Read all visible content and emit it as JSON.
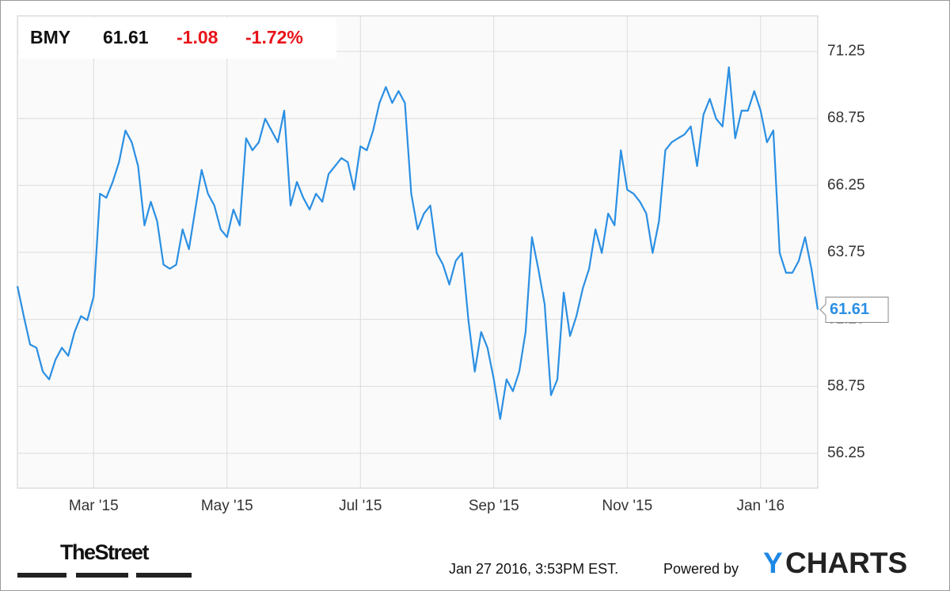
{
  "chart_data": {
    "type": "line",
    "header": {
      "change": "-1.08",
      "change_pct": "-1.72%"
    },
    "categories": [
      null,
      null,
      null,
      null,
      null,
      null,
      null,
      null,
      null,
      null,
      null,
      null,
      "Mar '15",
      null,
      null,
      null,
      null,
      null,
      null,
      null,
      null,
      null,
      null,
      null,
      null,
      null,
      null,
      null,
      null,
      null,
      null,
      null,
      null,
      "May '15",
      null,
      null,
      null,
      null,
      null,
      null,
      null,
      null,
      null,
      null,
      null,
      null,
      null,
      null,
      null,
      null,
      null,
      null,
      null,
      null,
      "Jul '15",
      null,
      null,
      null,
      null,
      null,
      null,
      null,
      null,
      null,
      null,
      null,
      null,
      null,
      null,
      null,
      null,
      null,
      null,
      null,
      null,
      "Sep '15",
      null,
      null,
      null,
      null,
      null,
      null,
      null,
      null,
      null,
      null,
      null,
      null,
      null,
      null,
      null,
      null,
      null,
      null,
      null,
      null,
      "Nov '15",
      null,
      null,
      null,
      null,
      null,
      null,
      null,
      null,
      null,
      null,
      null,
      null,
      null,
      null,
      null,
      null,
      null,
      null,
      null,
      null,
      "Jan '16",
      null,
      null,
      null,
      null,
      null,
      null,
      null,
      null,
      null
    ],
    "series": [
      {
        "name": "BMY",
        "color": "#2b8fe3",
        "values": [
          62.49,
          61.37,
          60.31,
          60.19,
          59.3,
          59.01,
          59.75,
          60.19,
          59.89,
          60.78,
          61.37,
          61.22,
          62.1,
          65.94,
          65.79,
          66.38,
          67.12,
          68.3,
          67.86,
          66.97,
          64.76,
          65.64,
          64.91,
          63.29,
          63.14,
          63.29,
          64.61,
          63.87,
          65.35,
          66.83,
          65.94,
          65.5,
          64.61,
          64.32,
          65.35,
          64.76,
          68.01,
          67.56,
          67.86,
          68.74,
          68.3,
          67.86,
          69.04,
          65.5,
          66.38,
          65.79,
          65.35,
          65.94,
          65.64,
          66.68,
          66.97,
          67.27,
          67.12,
          66.09,
          67.71,
          67.56,
          68.3,
          69.33,
          69.92,
          69.33,
          69.77,
          69.33,
          65.94,
          64.61,
          65.2,
          65.5,
          63.73,
          63.29,
          62.55,
          63.43,
          63.73,
          61.22,
          59.3,
          60.78,
          60.19,
          59.01,
          57.53,
          59.01,
          58.57,
          59.3,
          60.78,
          64.32,
          63.14,
          61.81,
          58.42,
          59.01,
          62.25,
          60.63,
          61.37,
          62.4,
          63.14,
          64.61,
          63.73,
          65.2,
          64.76,
          67.56,
          66.09,
          65.94,
          65.64,
          65.2,
          63.73,
          64.91,
          67.56,
          67.86,
          68.01,
          68.15,
          68.45,
          66.97,
          68.89,
          69.48,
          68.74,
          68.45,
          70.66,
          68.01,
          69.04,
          69.04,
          69.77,
          69.04,
          67.86,
          68.3,
          63.73,
          62.99,
          62.99,
          63.43,
          64.32,
          63.14,
          61.61
        ]
      }
    ],
    "ylim": [
      54.95,
      72.58
    ],
    "yticks": [
      56.25,
      58.75,
      61.25,
      63.75,
      66.25,
      68.75,
      71.25
    ],
    "grid": true,
    "footer": {
      "source": "TheStreet",
      "timestamp": "Jan 27 2016, 3:53PM EST.",
      "powered_by": "Powered by",
      "brand_initial": "Y",
      "brand_rest": "CHARTS"
    }
  }
}
